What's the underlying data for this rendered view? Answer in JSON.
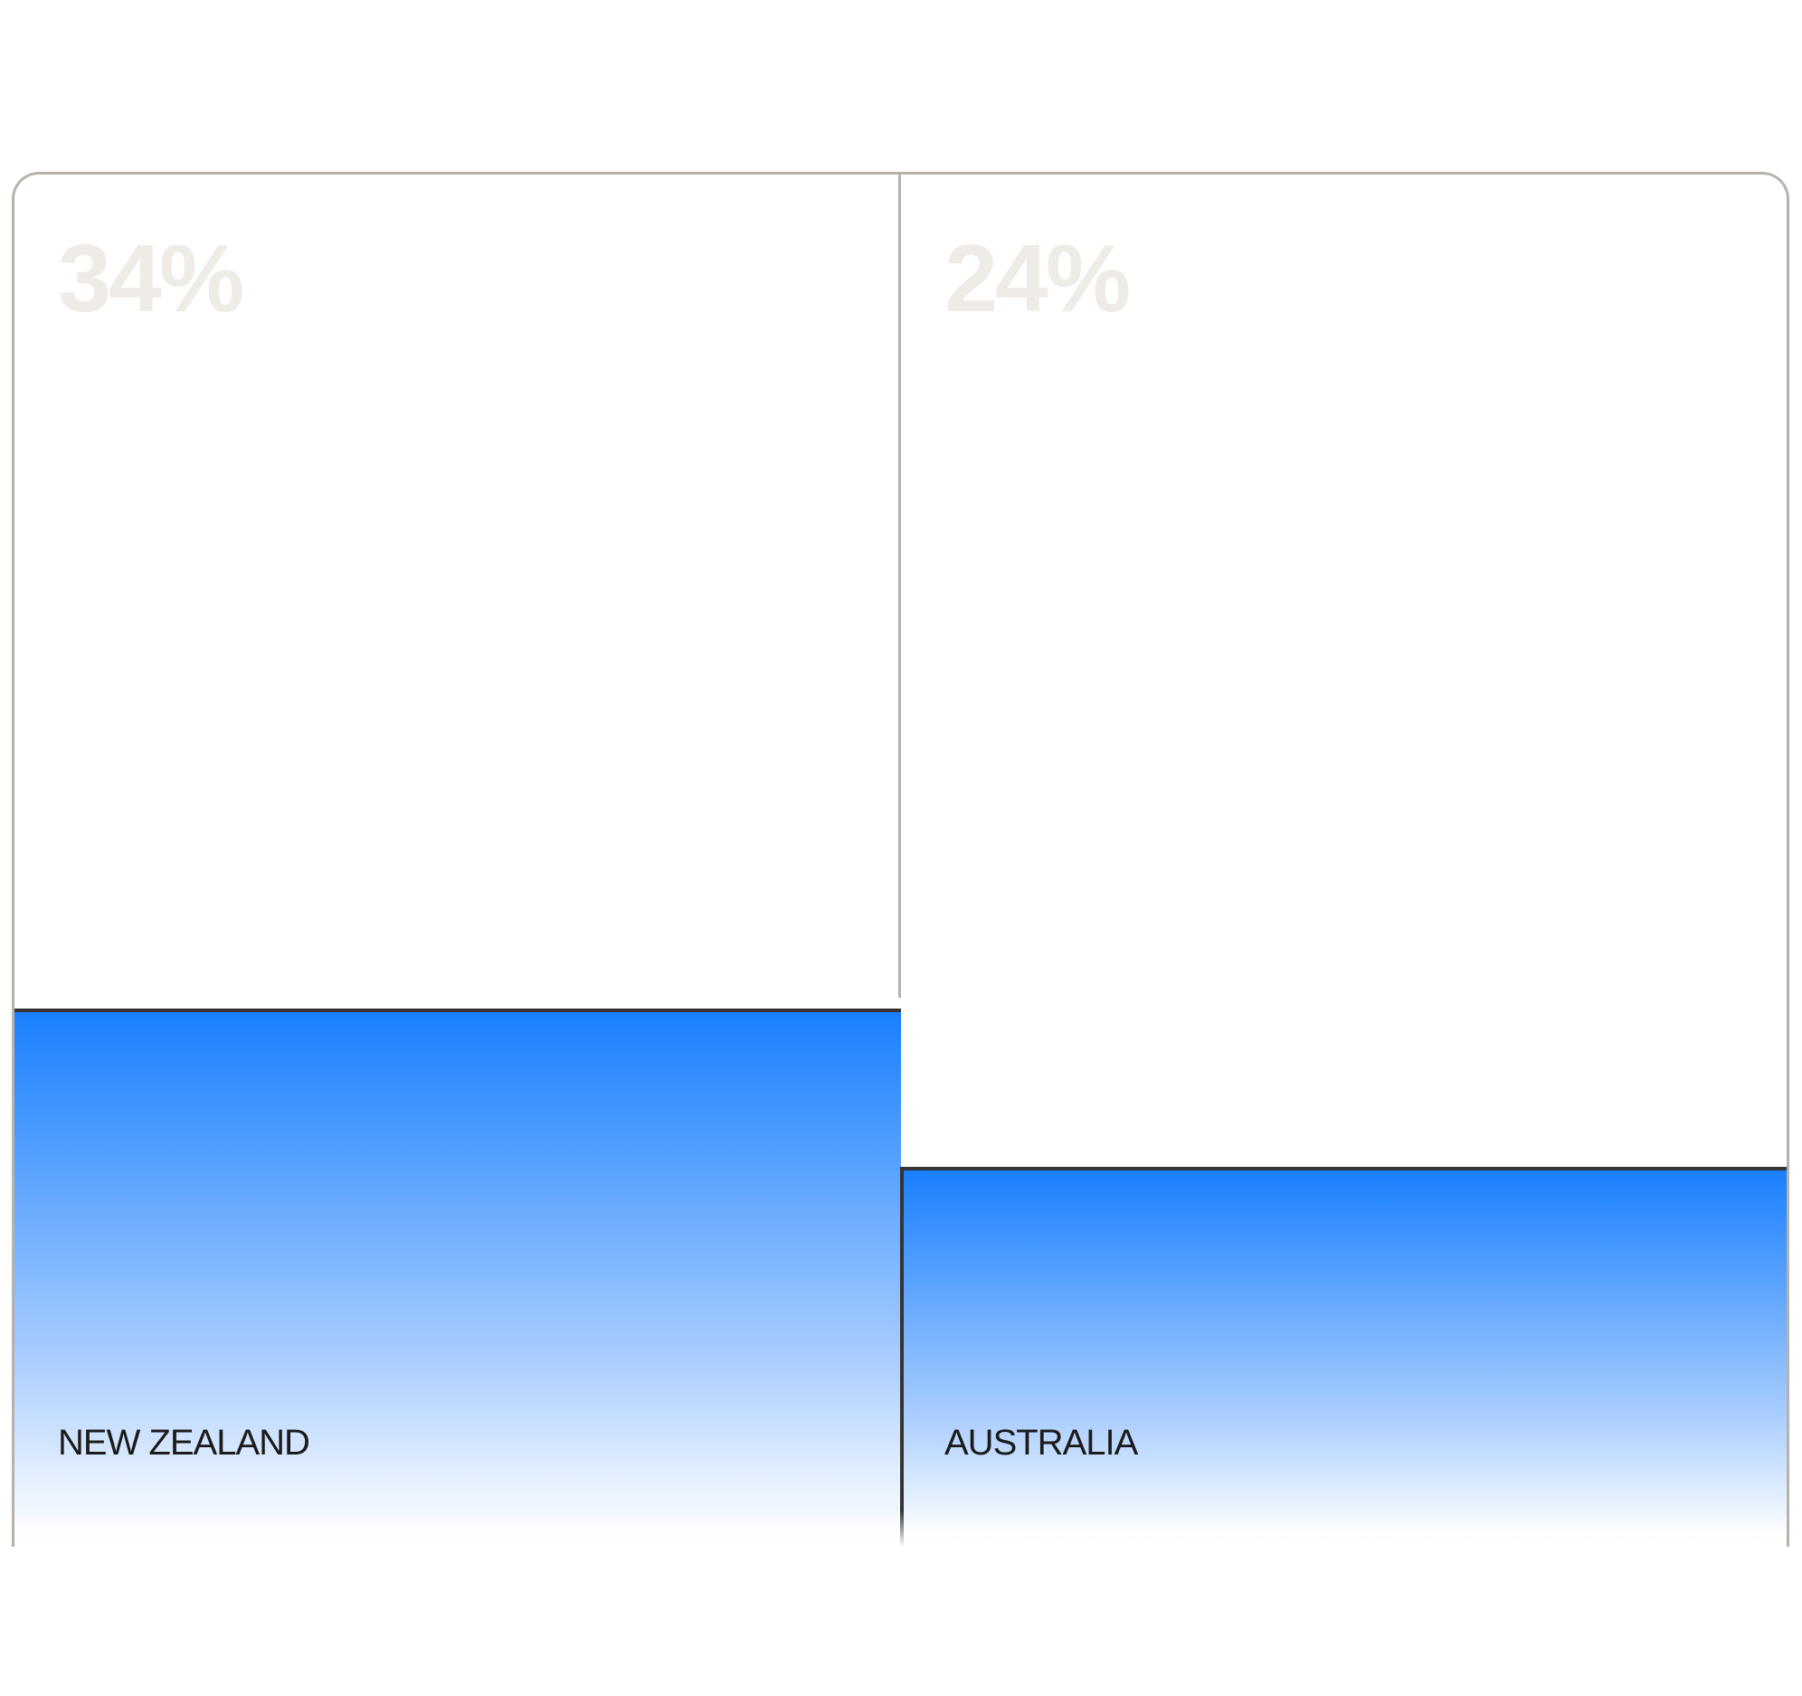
{
  "chart_data": {
    "type": "bar",
    "categories": [
      "NEW ZEALAND",
      "AUSTRALIA"
    ],
    "values": [
      34,
      24
    ],
    "value_labels": [
      "34%",
      "24%"
    ],
    "ylim": [
      0,
      100
    ],
    "grid": false,
    "colors": {
      "bar_top": "#1a80ff",
      "bar_bottom": "#ffffff",
      "bar_edge": "#363432",
      "value_label": "#efebe6",
      "frame": "#b8b2ab"
    }
  }
}
